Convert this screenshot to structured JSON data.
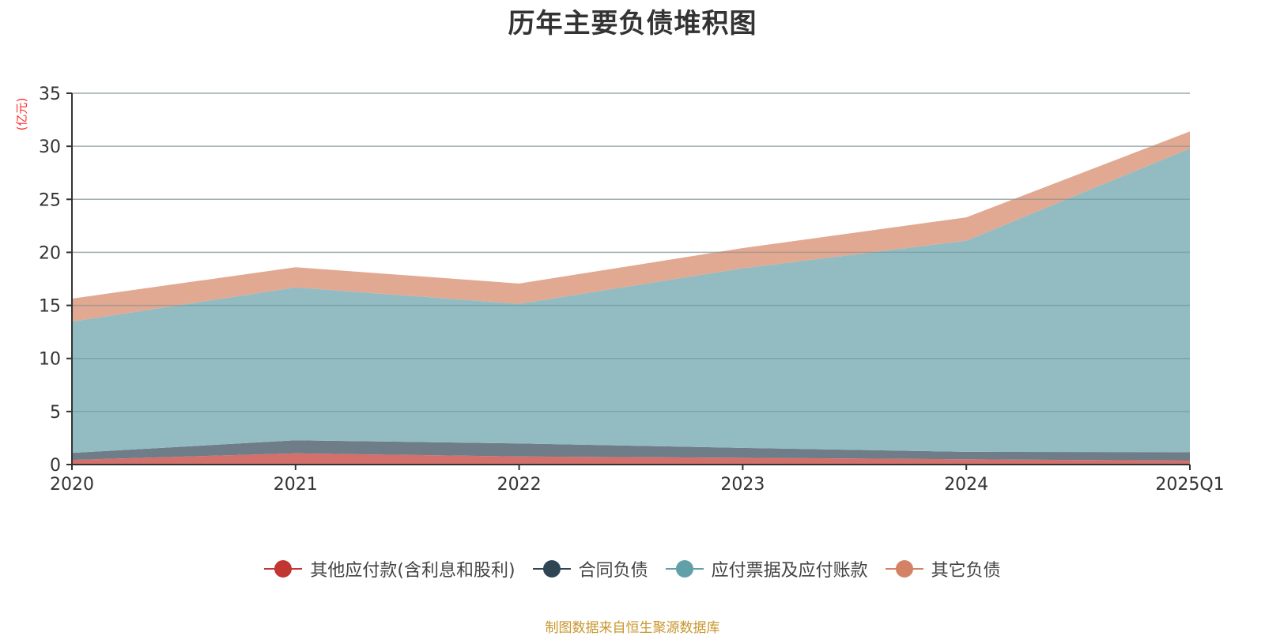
{
  "title": "历年主要负债堆积图",
  "unit_label": "(亿元)",
  "source_note": "制图数据来自恒生聚源数据库",
  "legend": [
    {
      "label": "其他应付款(含利息和股利)",
      "color": "#c23531"
    },
    {
      "label": "合同负债",
      "color": "#2f4554"
    },
    {
      "label": "应付票据及应付账款",
      "color": "#61a0a8"
    },
    {
      "label": "其它负债",
      "color": "#d48265"
    }
  ],
  "chart_data": {
    "type": "area",
    "stacked": true,
    "title": "历年主要负债堆积图",
    "xlabel": "",
    "ylabel": "(亿元)",
    "categories": [
      "2020",
      "2021",
      "2022",
      "2023",
      "2024",
      "2025Q1"
    ],
    "ylim": [
      0,
      35
    ],
    "yticks": [
      0,
      5,
      10,
      15,
      20,
      25,
      30,
      35
    ],
    "grid": true,
    "legend_position": "bottom",
    "series": [
      {
        "name": "其他应付款(含利息和股利)",
        "color": "#c23531",
        "fill": "#d4706b",
        "values": [
          0.44,
          1.06,
          0.76,
          0.64,
          0.5,
          0.37
        ]
      },
      {
        "name": "合同负债",
        "color": "#2f4554",
        "fill": "#6e7d88",
        "values": [
          0.66,
          1.23,
          1.23,
          0.93,
          0.7,
          0.8
        ]
      },
      {
        "name": "应付票据及应付账款",
        "color": "#61a0a8",
        "fill": "#93bcc2",
        "values": [
          12.38,
          14.41,
          13.16,
          16.93,
          19.9,
          28.63
        ]
      },
      {
        "name": "其它负债",
        "color": "#d48265",
        "fill": "#e1a892",
        "values": [
          2.16,
          1.9,
          1.91,
          1.9,
          2.2,
          1.6
        ]
      }
    ]
  }
}
